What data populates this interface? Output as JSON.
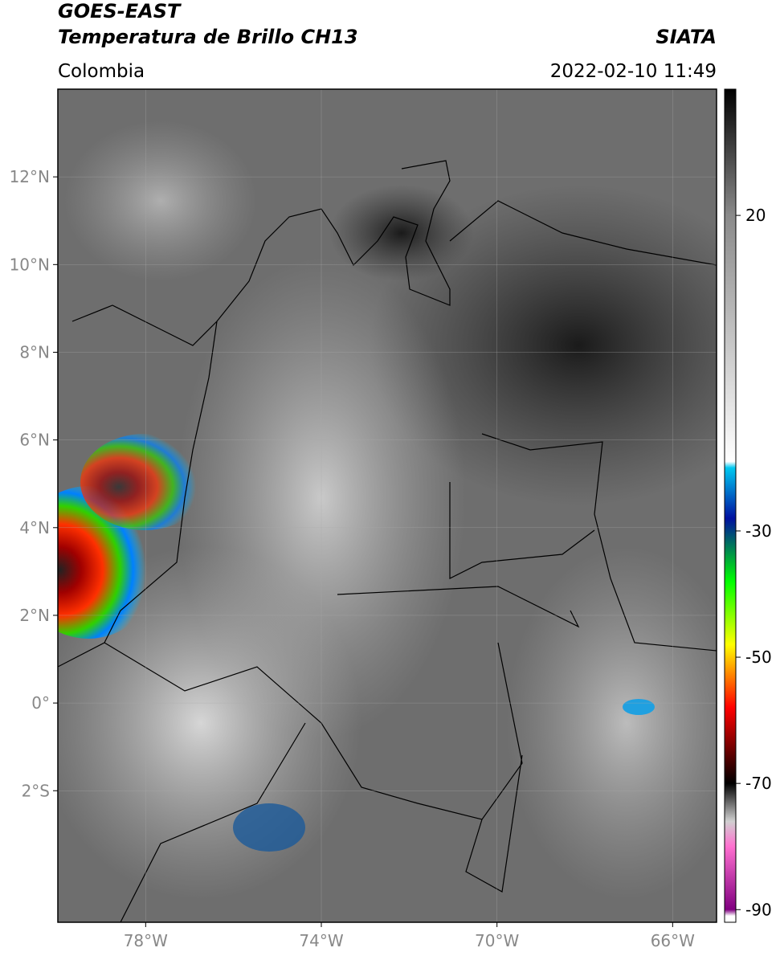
{
  "header": {
    "satellite": "GOES-EAST",
    "product": "Temperatura de Brillo CH13",
    "agency": "SIATA",
    "region": "Colombia",
    "datetime": "2022-02-10 11:49"
  },
  "map": {
    "xlim": [
      -80,
      -65
    ],
    "ylim": [
      -5,
      14
    ],
    "grid": true,
    "xticks": [
      {
        "value": -78,
        "label": "78°W"
      },
      {
        "value": -74,
        "label": "74°W"
      },
      {
        "value": -70,
        "label": "70°W"
      },
      {
        "value": -66,
        "label": "66°W"
      }
    ],
    "yticks": [
      {
        "value": 12,
        "label": "12°N"
      },
      {
        "value": 10,
        "label": "10°N"
      },
      {
        "value": 8,
        "label": "8°N"
      },
      {
        "value": 6,
        "label": "6°N"
      },
      {
        "value": 4,
        "label": "4°N"
      },
      {
        "value": 2,
        "label": "2°N"
      },
      {
        "value": 0,
        "label": "0°"
      },
      {
        "value": -2,
        "label": "2°S"
      }
    ]
  },
  "colorbar": {
    "lim": [
      -92,
      40
    ],
    "ticks": [
      20,
      -30,
      -50,
      -70,
      -90
    ],
    "stops": [
      {
        "value": 40,
        "color": "#000000"
      },
      {
        "value": 20,
        "color": "#8a8a8a"
      },
      {
        "value": -19,
        "color": "#ffffff"
      },
      {
        "value": -20,
        "color": "#00c8f0"
      },
      {
        "value": -28,
        "color": "#0010a0"
      },
      {
        "value": -38,
        "color": "#00ff00"
      },
      {
        "value": -48,
        "color": "#ffff00"
      },
      {
        "value": -58,
        "color": "#ff0000"
      },
      {
        "value": -66,
        "color": "#500000"
      },
      {
        "value": -70,
        "color": "#000000"
      },
      {
        "value": -76,
        "color": "#d0d0d0"
      },
      {
        "value": -80,
        "color": "#ff70d0"
      },
      {
        "value": -90,
        "color": "#800080"
      },
      {
        "value": -91,
        "color": "#ffffff"
      }
    ]
  }
}
